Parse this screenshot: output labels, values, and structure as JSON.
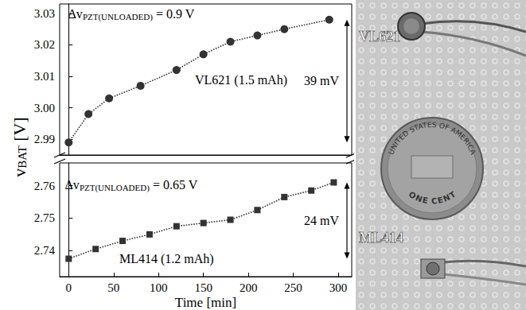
{
  "chart_data": [
    {
      "type": "line",
      "tick_labels": "y",
      "grid": false,
      "y_label": {
        "main": "v",
        "sub": "BAT",
        "rest": " [V]"
      },
      "xlim": [
        -10,
        315
      ],
      "xticks": [
        0,
        50,
        100,
        150,
        200,
        250,
        300
      ],
      "ylim": [
        2.985,
        3.033
      ],
      "yticks": [
        2.99,
        {
          "value": 3,
          "label": "3.00"
        },
        3.01,
        3.02,
        3.03
      ],
      "series": [
        {
          "name": "VL621 (1.5 mAh)",
          "color": "#333333",
          "marker": "circle",
          "line_style": "dotted",
          "x": [
            0,
            22,
            45,
            80,
            120,
            150,
            180,
            210,
            240,
            290
          ],
          "values": [
            2.989,
            2.998,
            3.003,
            3.007,
            3.012,
            3.017,
            3.021,
            3.023,
            3.025,
            3.028
          ]
        }
      ],
      "annotations": [
        {
          "main": "Δv",
          "sub": "PZT(UNLOADED)",
          "rest": " = 0.9 V"
        },
        {
          "text": "39 mV"
        }
      ]
    },
    {
      "type": "line",
      "tick_labels": true,
      "grid": false,
      "x_label": "Time [min]",
      "xlim": [
        -10,
        315
      ],
      "xticks": [
        0,
        50,
        100,
        150,
        200,
        250,
        300
      ],
      "ylim": [
        2.732,
        2.767
      ],
      "yticks": [
        2.74,
        2.75,
        2.76
      ],
      "series": [
        {
          "name": "ML414 (1.2 mAh)",
          "color": "#333333",
          "marker": "square",
          "line_style": "dotted",
          "x": [
            0,
            30,
            60,
            90,
            120,
            150,
            180,
            210,
            240,
            270,
            295
          ],
          "values": [
            2.7375,
            2.7405,
            2.743,
            2.745,
            2.7475,
            2.7485,
            2.7495,
            2.7525,
            2.7565,
            2.7585,
            2.761
          ]
        }
      ],
      "annotations": [
        {
          "main": "Δv",
          "sub": "PZT(UNLOADED)",
          "rest": " = 0.65 V"
        },
        {
          "text": "24 mV"
        }
      ]
    }
  ],
  "photo": {
    "labels": [
      "VL621",
      "ML414"
    ],
    "coin": [
      "UNITED STATES OF AMERICA",
      "ONE CENT"
    ]
  }
}
